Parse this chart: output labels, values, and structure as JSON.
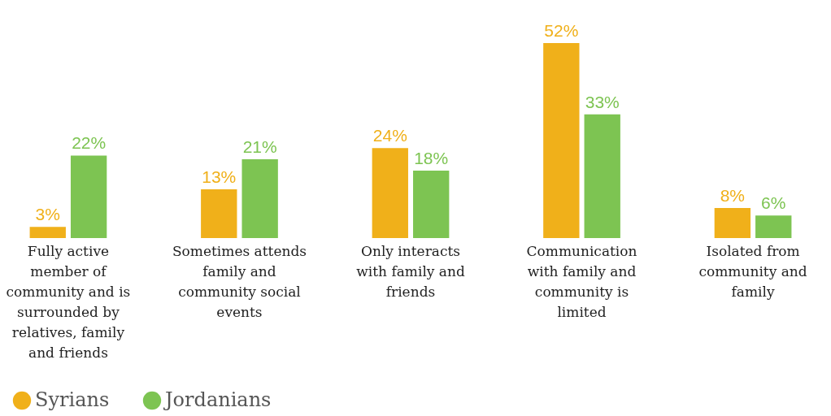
{
  "chart_data": {
    "type": "bar",
    "categories": [
      "Fully active member of community and is surrounded by relatives, family and friends",
      "Sometimes attends family and community social events",
      "Only interacts with family and friends",
      "Communication with family and community is limited",
      "Isolated from community and family"
    ],
    "series": [
      {
        "name": "Syrians",
        "color": "#f0b01a",
        "values": [
          3,
          13,
          24,
          52,
          8
        ],
        "value_labels": [
          "3%",
          "13%",
          "24%",
          "52%",
          "8%"
        ]
      },
      {
        "name": "Jordanians",
        "color": "#7dc452",
        "values": [
          22,
          21,
          18,
          33,
          6
        ],
        "value_labels": [
          "22%",
          "21%",
          "18%",
          "33%",
          "6%"
        ]
      }
    ],
    "legend": "bottom left",
    "grid": false
  }
}
